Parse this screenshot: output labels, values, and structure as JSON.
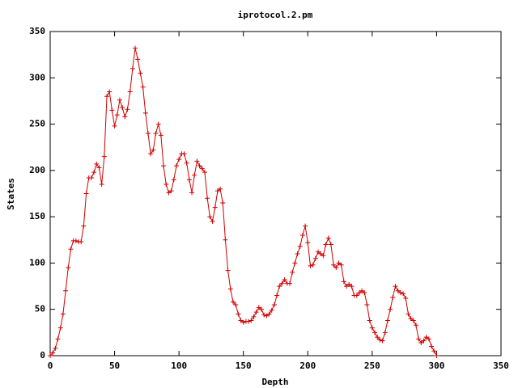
{
  "chart_data": {
    "type": "line",
    "title": "iprotocol.2.pm",
    "xlabel": "Depth",
    "ylabel": "States",
    "x": [
      0,
      2,
      4,
      6,
      8,
      10,
      12,
      14,
      16,
      18,
      20,
      22,
      24,
      26,
      28,
      30,
      32,
      34,
      36,
      38,
      40,
      42,
      44,
      46,
      48,
      50,
      52,
      54,
      56,
      58,
      60,
      62,
      64,
      66,
      68,
      70,
      72,
      74,
      76,
      78,
      80,
      82,
      84,
      86,
      88,
      90,
      92,
      94,
      96,
      98,
      100,
      102,
      104,
      106,
      108,
      110,
      112,
      114,
      116,
      118,
      120,
      122,
      124,
      126,
      128,
      130,
      132,
      134,
      136,
      138,
      140,
      142,
      144,
      146,
      148,
      150,
      152,
      154,
      156,
      158,
      160,
      162,
      164,
      166,
      168,
      170,
      172,
      174,
      176,
      178,
      180,
      182,
      184,
      186,
      188,
      190,
      192,
      194,
      196,
      198,
      200,
      202,
      204,
      206,
      208,
      210,
      212,
      214,
      216,
      218,
      220,
      222,
      224,
      226,
      228,
      230,
      232,
      234,
      236,
      238,
      240,
      242,
      244,
      246,
      248,
      250,
      252,
      254,
      256,
      258,
      260,
      262,
      264,
      266,
      268,
      270,
      272,
      274,
      276,
      278,
      280,
      282,
      284,
      286,
      288,
      290,
      292,
      294,
      296,
      298,
      300
    ],
    "series": [
      {
        "color": "#d00000",
        "values": [
          0,
          3,
          8,
          18,
          30,
          45,
          70,
          95,
          115,
          124,
          124,
          123,
          123,
          140,
          175,
          192,
          192,
          198,
          207,
          203,
          185,
          215,
          280,
          285,
          265,
          248,
          260,
          276,
          268,
          258,
          266,
          285,
          310,
          332,
          320,
          305,
          290,
          262,
          240,
          218,
          222,
          240,
          250,
          238,
          205,
          185,
          176,
          178,
          190,
          205,
          212,
          218,
          218,
          208,
          190,
          176,
          195,
          210,
          205,
          202,
          198,
          170,
          150,
          145,
          160,
          178,
          180,
          165,
          125,
          92,
          72,
          58,
          55,
          45,
          38,
          36,
          37,
          37,
          38,
          42,
          47,
          52,
          50,
          44,
          43,
          45,
          49,
          55,
          65,
          75,
          78,
          82,
          78,
          78,
          90,
          100,
          110,
          118,
          130,
          140,
          122,
          97,
          98,
          105,
          112,
          110,
          108,
          120,
          127,
          120,
          98,
          95,
          100,
          98,
          80,
          75,
          77,
          75,
          65,
          65,
          68,
          70,
          68,
          55,
          38,
          30,
          25,
          20,
          17,
          16,
          25,
          38,
          50,
          63,
          75,
          70,
          68,
          67,
          62,
          45,
          40,
          38,
          33,
          18,
          14,
          16,
          20,
          18,
          10,
          5,
          0
        ]
      }
    ],
    "xlim": [
      0,
      350
    ],
    "xticks": [
      0,
      50,
      100,
      150,
      200,
      250,
      300,
      350
    ],
    "ylim": [
      0,
      350
    ],
    "yticks": [
      0,
      50,
      100,
      150,
      200,
      250,
      300,
      350
    ]
  }
}
